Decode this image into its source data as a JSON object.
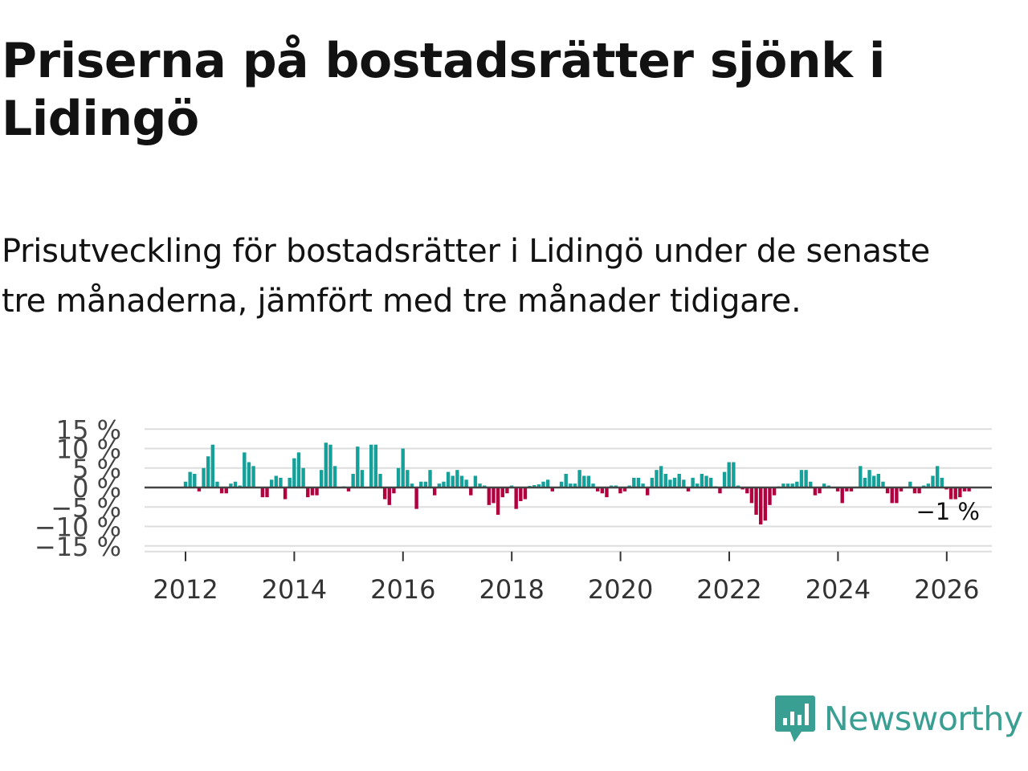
{
  "header": {
    "title": "Priserna på bostadsrätter sjönk i Lidingö",
    "subtitle": "Prisutveckling för bostadsrätter i Lidingö under de senaste tre månaderna, jämfört med tre månader tidigare."
  },
  "chart_data": {
    "type": "bar",
    "title": "Priserna på bostadsrätter sjönk i Lidingö",
    "xlabel": "",
    "ylabel": "",
    "ylim": [
      -15,
      15
    ],
    "y_ticks": [
      15,
      10,
      5,
      0,
      -5,
      -10,
      -15
    ],
    "y_tick_labels": [
      "15 %",
      "10 %",
      "5 %",
      "0 %",
      "−5 %",
      "−10 %",
      "−15 %"
    ],
    "x_ticks": [
      2012,
      2014,
      2016,
      2018,
      2020,
      2022,
      2024,
      2026
    ],
    "x_tick_labels": [
      "2012",
      "2014",
      "2016",
      "2018",
      "2020",
      "2022",
      "2024",
      "2026"
    ],
    "start_year": 2012.0,
    "month_step": 0.0833,
    "colors": {
      "positive": "#16a09a",
      "negative": "#b2003f",
      "zero_line": "#444444",
      "grid": "#dddddd"
    },
    "values": [
      1.5,
      4,
      3.5,
      -1,
      5,
      8,
      11,
      1.5,
      -1.5,
      -1.5,
      1,
      1.5,
      0.5,
      9,
      6.5,
      5.5,
      0,
      -2.5,
      -2.5,
      2,
      3,
      2.5,
      -3,
      2.5,
      7.5,
      9,
      5,
      -2.5,
      -2,
      -2,
      4.5,
      11.5,
      11,
      5.5,
      0.2,
      0.3,
      -1,
      3.5,
      10.5,
      4.5,
      0,
      11,
      11,
      3.5,
      -3,
      -4.5,
      -1.5,
      5,
      10,
      4.5,
      1,
      -5.5,
      1.5,
      1.5,
      4.5,
      -2,
      1,
      1.5,
      4,
      3,
      4.5,
      3,
      2,
      -2,
      3,
      1,
      0.5,
      -4.5,
      -4,
      -7,
      -2.5,
      -1.5,
      0.5,
      -5.5,
      -3.5,
      -3,
      0.4,
      0.6,
      0.8,
      1.5,
      2,
      -1,
      0.2,
      1.5,
      3.5,
      1,
      1,
      4.5,
      3,
      3,
      1,
      -1,
      -1.5,
      -2.5,
      0.5,
      0.5,
      -1.5,
      -1,
      0.5,
      2.5,
      2.5,
      1,
      -2,
      2.5,
      4.5,
      5.5,
      3.5,
      2,
      2.5,
      3.5,
      2,
      -1,
      2.5,
      1,
      3.5,
      3,
      2.5,
      0.3,
      -1.5,
      4,
      6.5,
      6.5,
      0.5,
      -0.5,
      -1.5,
      -4,
      -7,
      -9.5,
      -8.5,
      -4.5,
      -2,
      0.3,
      1,
      1,
      1,
      1.5,
      4.5,
      4.5,
      1.5,
      -2,
      -1.5,
      1,
      0.5,
      0,
      -1,
      -4,
      -1,
      -1,
      0.2,
      5.5,
      2.5,
      4.5,
      3,
      3.5,
      1.5,
      -1.5,
      -4,
      -4,
      -1,
      0,
      1.5,
      -1.5,
      -1.5,
      0.5,
      1,
      3,
      5.5,
      2.5,
      -0.5,
      -3,
      -3,
      -2.5,
      -1,
      -1
    ],
    "annotation": {
      "text": "−1 %",
      "value": -1
    }
  },
  "logo": {
    "text": "Newsworthy",
    "color": "#3a9f93"
  }
}
